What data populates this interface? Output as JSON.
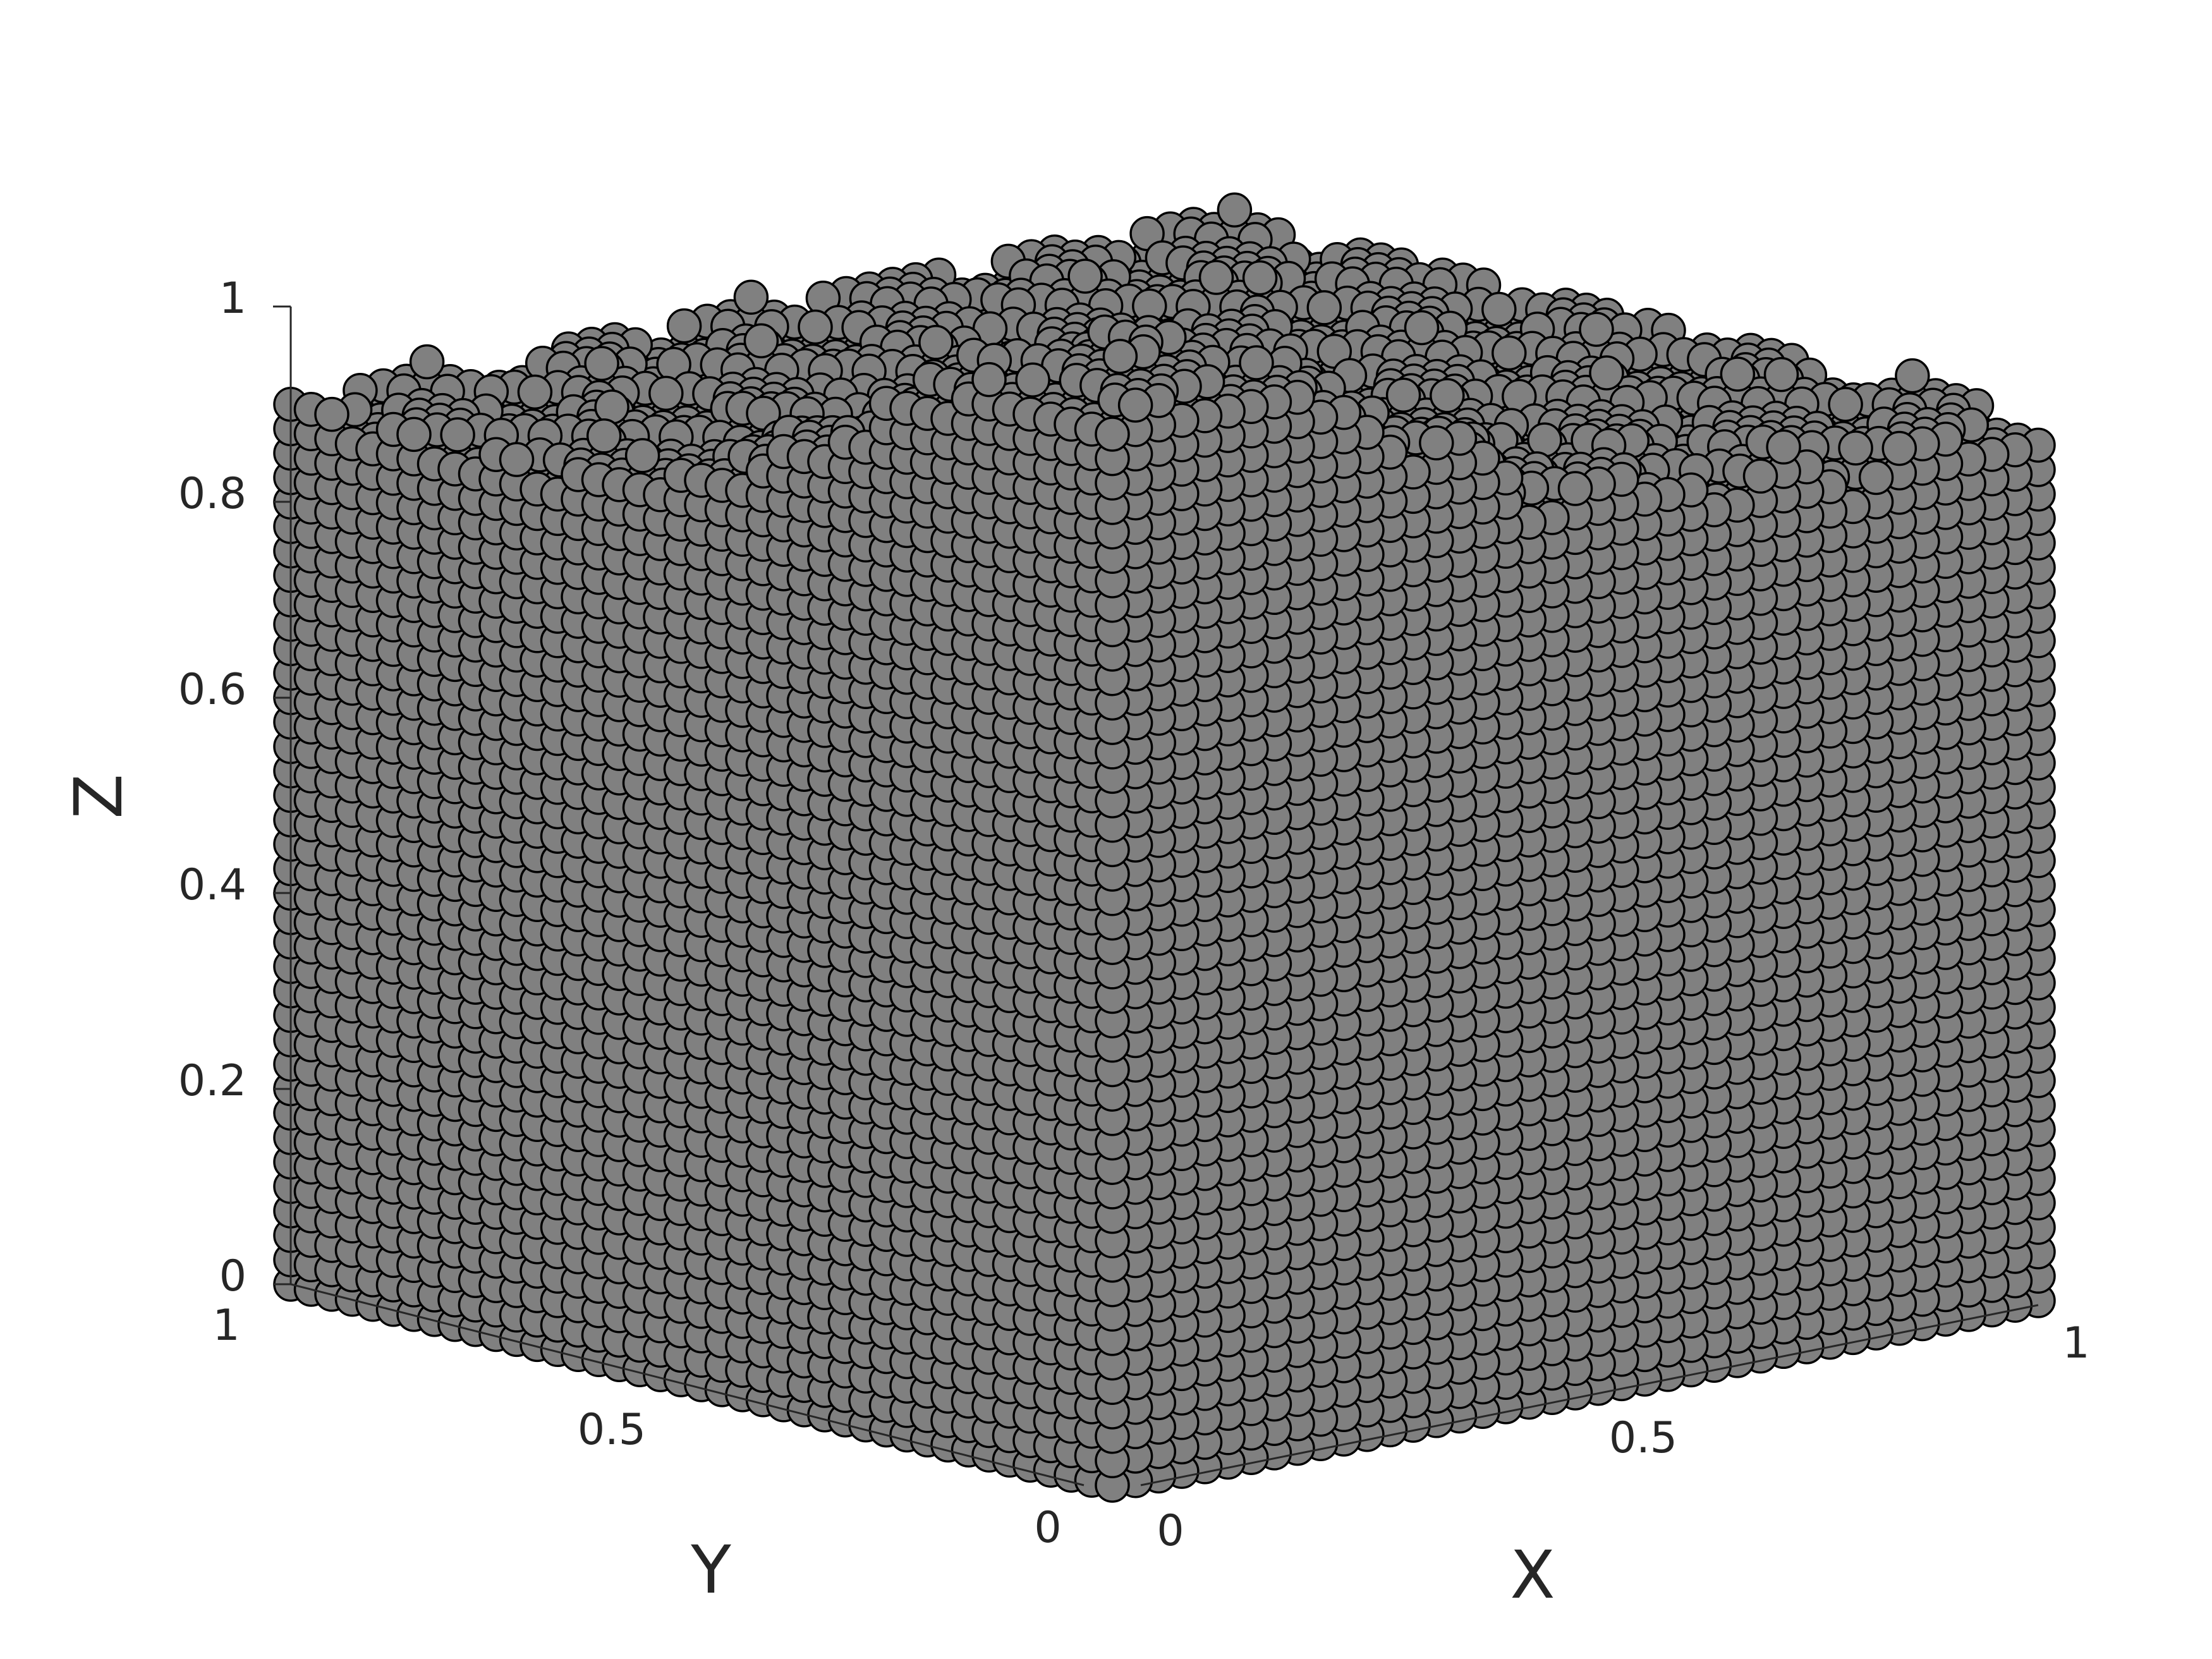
{
  "chart_data": {
    "type": "scatter3d",
    "title": "",
    "xlabel": "X",
    "ylabel": "Y",
    "zlabel": "Z",
    "xlim": [
      0,
      1
    ],
    "ylim": [
      0,
      1
    ],
    "zlim": [
      0,
      1
    ],
    "x_ticks": [
      "0",
      "0.5",
      "1"
    ],
    "y_ticks": [
      "0",
      "0.5",
      "1"
    ],
    "z_ticks": [
      "0",
      "0.2",
      "0.4",
      "0.6",
      "0.8",
      "1"
    ],
    "grid": false,
    "legend": "none",
    "marker": "sphere",
    "marker_color": "#808080",
    "marker_edge_color": "#000000",
    "particle_lattice": {
      "spacing": 0.025,
      "base_height": 0.9,
      "surface_bump": {
        "center_x": 0.1,
        "center_y": 0.1,
        "amplitude": 0.22,
        "width": 0.3
      }
    }
  }
}
